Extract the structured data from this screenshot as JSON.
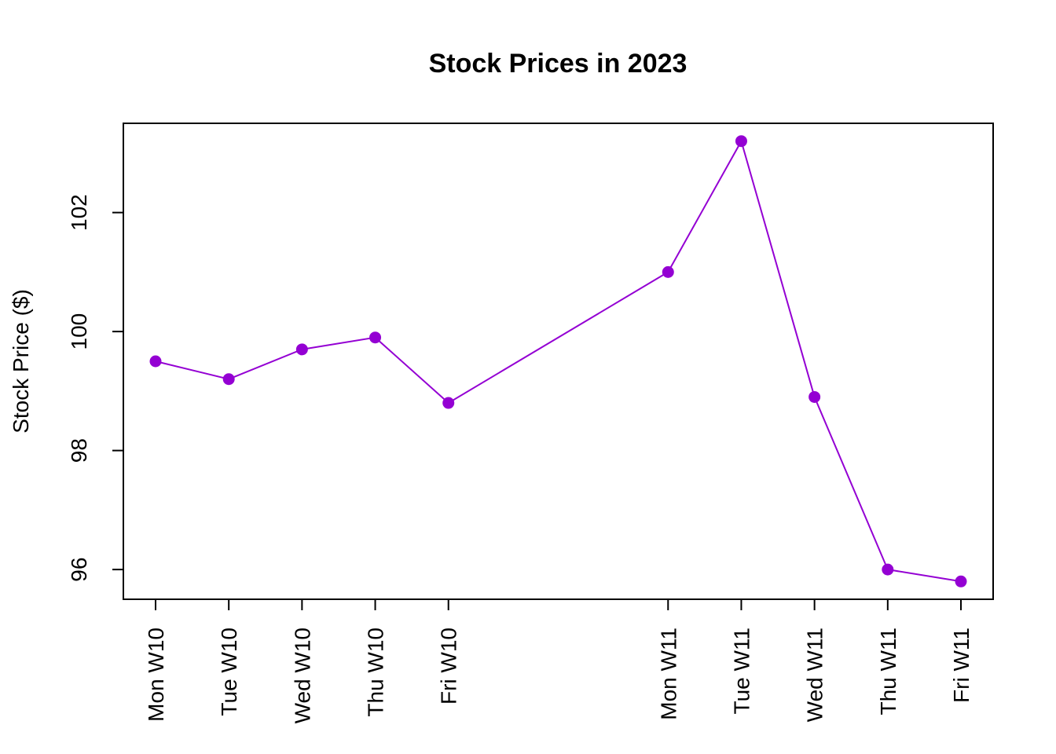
{
  "chart_data": {
    "type": "line",
    "title": "Stock Prices in 2023",
    "xlabel": "",
    "ylabel": "Stock Price ($)",
    "x": [
      1,
      2,
      3,
      4,
      5,
      8,
      9,
      10,
      11,
      12
    ],
    "categories": [
      "Mon W10",
      "Tue W10",
      "Wed W10",
      "Thu W10",
      "Fri W10",
      "Mon W11",
      "Tue W11",
      "Wed W11",
      "Thu W11",
      "Fri W11"
    ],
    "values": [
      99.5,
      99.2,
      99.7,
      99.9,
      98.8,
      101.0,
      103.2,
      98.9,
      96.0,
      95.8
    ],
    "yticks": [
      96,
      98,
      100,
      102
    ],
    "ylim": [
      95.5,
      103.5
    ],
    "xlim": [
      0.56,
      12.44
    ],
    "grid": false,
    "color": "#9400D3"
  }
}
